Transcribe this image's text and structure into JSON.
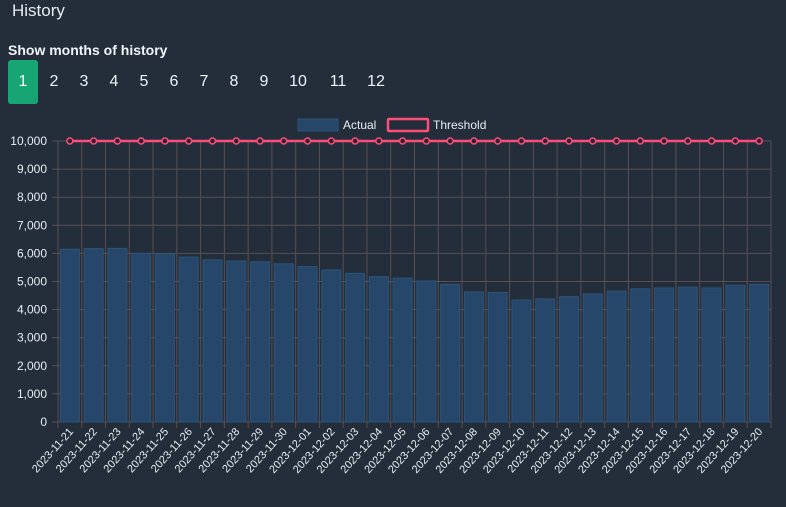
{
  "page": {
    "title": "History"
  },
  "months": {
    "label": "Show months of history",
    "options": [
      "1",
      "2",
      "3",
      "4",
      "5",
      "6",
      "7",
      "8",
      "9",
      "10",
      "11",
      "12"
    ],
    "selected": "1"
  },
  "colors": {
    "actual_fill": "#27476a",
    "actual_border": "#2d5479",
    "threshold": "#ff4d7a",
    "grid": "#5a4e55",
    "tab_active": "#17a673",
    "axis_text": "#e8edf2"
  },
  "chart_data": {
    "type": "bar",
    "legend": [
      "Actual",
      "Threshold"
    ],
    "legend_position": "top",
    "grid": true,
    "ylim": [
      0,
      10000
    ],
    "yticks": [
      "0",
      "1,000",
      "2,000",
      "3,000",
      "4,000",
      "5,000",
      "6,000",
      "7,000",
      "8,000",
      "9,000",
      "10,000"
    ],
    "categories": [
      "2023-11-21",
      "2023-11-22",
      "2023-11-23",
      "2023-11-24",
      "2023-11-25",
      "2023-11-26",
      "2023-11-27",
      "2023-11-28",
      "2023-11-29",
      "2023-11-30",
      "2023-12-01",
      "2023-12-02",
      "2023-12-03",
      "2023-12-04",
      "2023-12-05",
      "2023-12-06",
      "2023-12-07",
      "2023-12-08",
      "2023-12-09",
      "2023-12-10",
      "2023-12-11",
      "2023-12-12",
      "2023-12-13",
      "2023-12-14",
      "2023-12-15",
      "2023-12-16",
      "2023-12-17",
      "2023-12-18",
      "2023-12-19",
      "2023-12-20"
    ],
    "series": [
      {
        "name": "Actual",
        "type": "bar",
        "values": [
          6150,
          6170,
          6180,
          6000,
          5990,
          5870,
          5770,
          5730,
          5700,
          5630,
          5530,
          5410,
          5290,
          5170,
          5120,
          5020,
          4900,
          4630,
          4610,
          4340,
          4380,
          4460,
          4560,
          4660,
          4740,
          4770,
          4800,
          4770,
          4870,
          4900
        ]
      },
      {
        "name": "Threshold",
        "type": "line",
        "values": [
          10000,
          10000,
          10000,
          10000,
          10000,
          10000,
          10000,
          10000,
          10000,
          10000,
          10000,
          10000,
          10000,
          10000,
          10000,
          10000,
          10000,
          10000,
          10000,
          10000,
          10000,
          10000,
          10000,
          10000,
          10000,
          10000,
          10000,
          10000,
          10000,
          10000
        ]
      }
    ]
  }
}
